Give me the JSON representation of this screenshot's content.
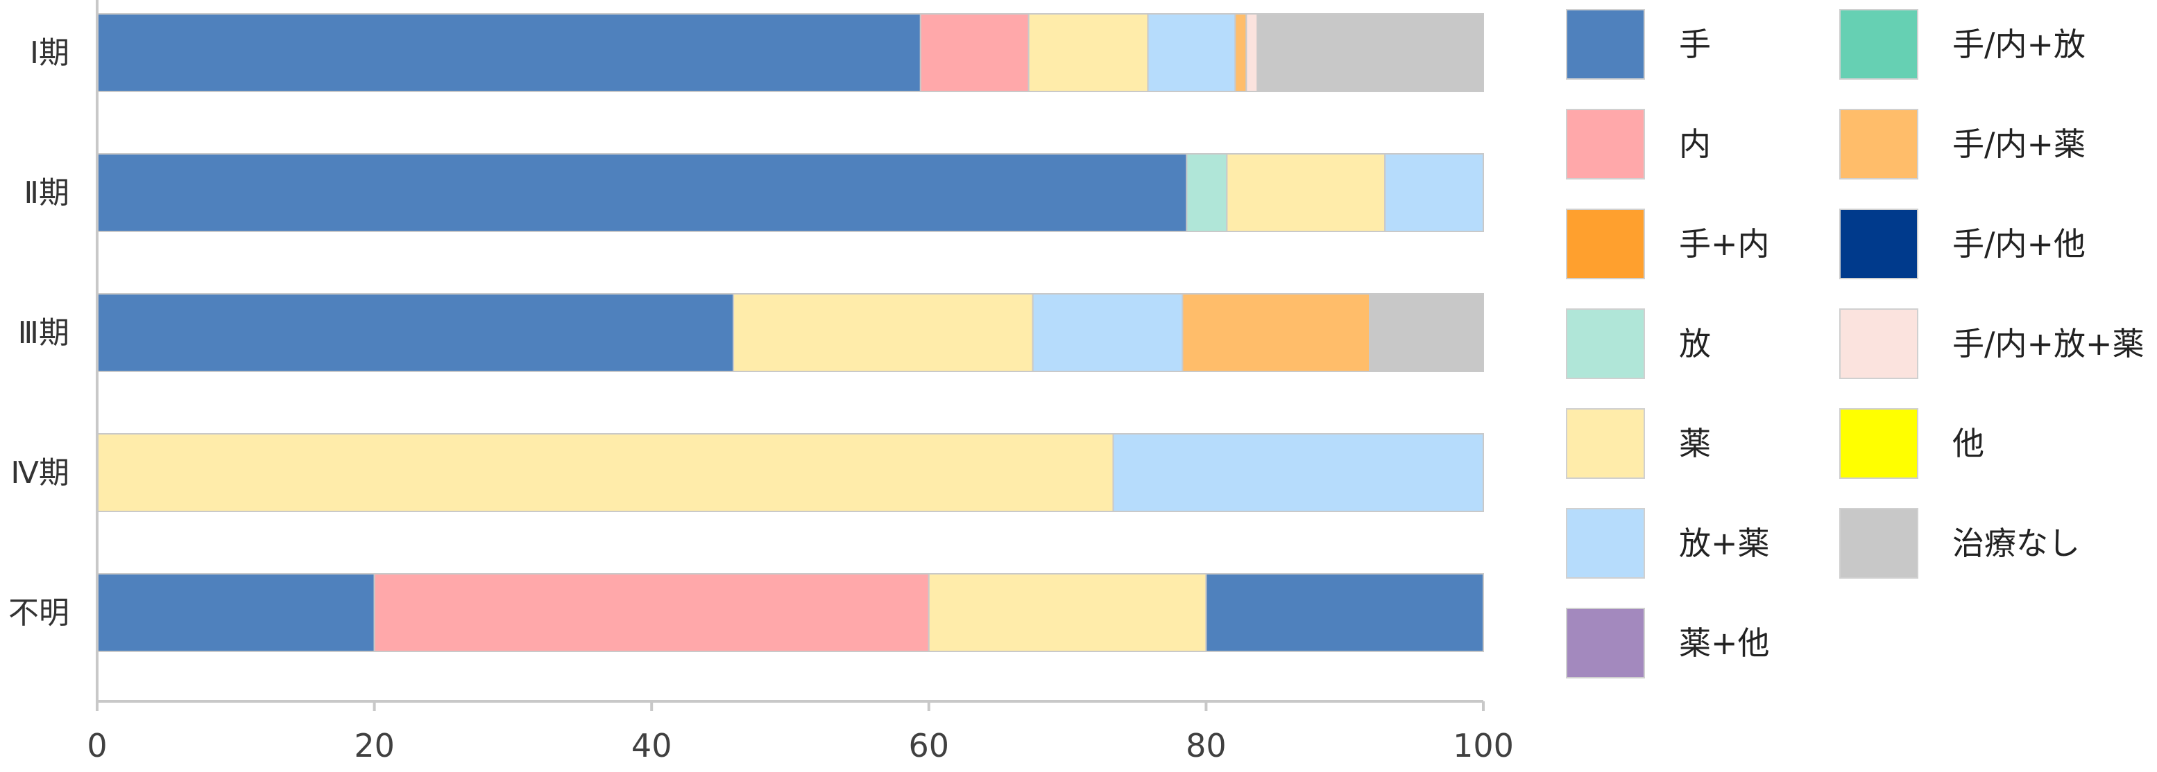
{
  "chart_data": {
    "type": "bar",
    "orientation": "horizontal",
    "stacked": true,
    "title": "",
    "xlabel": "",
    "ylabel": "",
    "xlim": [
      0,
      100
    ],
    "x_ticks": [
      "0",
      "20",
      "40",
      "60",
      "80",
      "100"
    ],
    "categories": [
      "Ⅰ期",
      "Ⅱ期",
      "Ⅲ期",
      "Ⅳ期",
      "不明"
    ],
    "grid": false,
    "legend_position": "right",
    "series": [
      {
        "name": "手",
        "color": "#4F81BD",
        "values": [
          59.4,
          78.6,
          45.9,
          0,
          20
        ]
      },
      {
        "name": "内",
        "color": "#FFA8AA",
        "values": [
          7.8,
          0,
          0,
          0,
          40
        ]
      },
      {
        "name": "手+内",
        "color": "#FFA02E",
        "values": [
          0,
          0,
          0,
          0,
          0
        ]
      },
      {
        "name": "放",
        "color": "#B0E6D8",
        "values": [
          0,
          2.9,
          0,
          0,
          0
        ]
      },
      {
        "name": "薬",
        "color": "#FFECAA",
        "values": [
          8.6,
          11.4,
          21.6,
          73.3,
          20
        ]
      },
      {
        "name": "放+薬",
        "color": "#B6DCFC",
        "values": [
          6.3,
          7.1,
          10.8,
          26.7,
          0
        ]
      },
      {
        "name": "薬+他",
        "color": "#A389BE",
        "values": [
          0,
          0,
          0,
          0,
          0
        ]
      },
      {
        "name": "手/内+放",
        "color": "#66D0B3",
        "values": [
          0,
          0,
          0,
          0,
          0
        ]
      },
      {
        "name": "手/内+薬",
        "color": "#FFBD6A",
        "values": [
          0.8,
          0,
          13.5,
          0,
          0
        ]
      },
      {
        "name": "手/内+他",
        "color": "#003A8C",
        "values": [
          0,
          0,
          0,
          0,
          0
        ]
      },
      {
        "name": "手/内+放+薬",
        "color": "#FBE3DE",
        "values": [
          0.8,
          0,
          0,
          0,
          0
        ]
      },
      {
        "name": "他",
        "color": "#FFFF00",
        "values": [
          0,
          0,
          0,
          0,
          0
        ]
      },
      {
        "name": "治療なし",
        "color": "#C8C8C8",
        "values": [
          16.3,
          0,
          8.2,
          0,
          0
        ]
      }
    ],
    "unlabeled_segments": [
      {
        "category": "不明",
        "value": 20,
        "color": "#4F81BD"
      }
    ]
  }
}
